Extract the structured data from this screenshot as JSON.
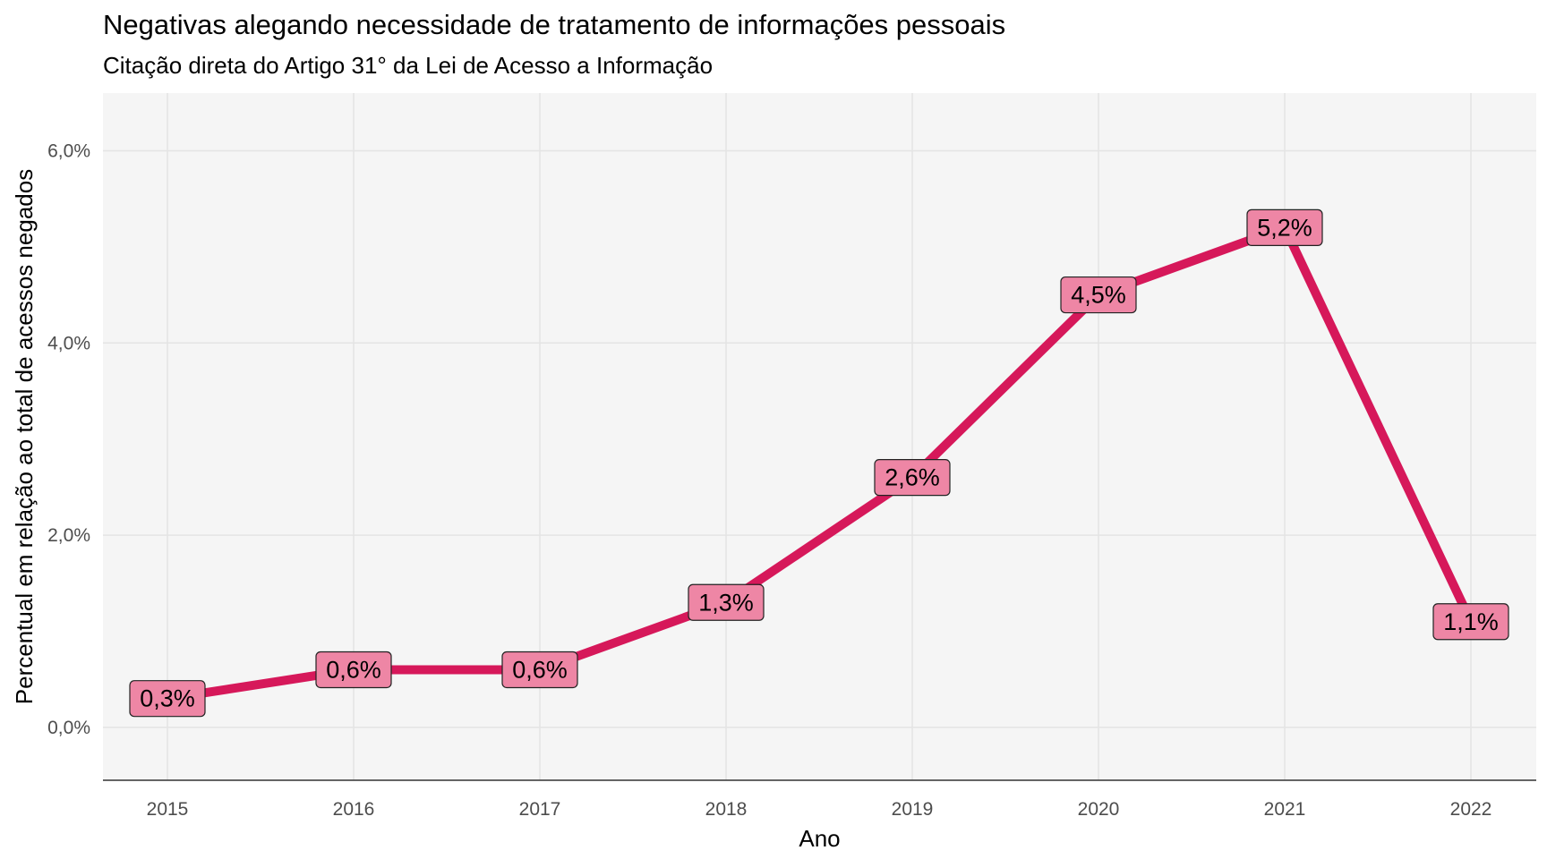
{
  "title": "Negativas alegando necessidade de tratamento de informações pessoais",
  "subtitle": "Citação direta do Artigo 31° da Lei de Acesso a Informação",
  "chart_data": {
    "type": "line",
    "title": "Negativas alegando necessidade de tratamento de informações pessoais",
    "subtitle": "Citação direta do Artigo 31° da Lei de Acesso a Informação",
    "xlabel": "Ano",
    "ylabel": "Percentual em relação ao total de acessos negados",
    "categories": [
      "2015",
      "2016",
      "2017",
      "2018",
      "2019",
      "2020",
      "2021",
      "2022"
    ],
    "values": [
      0.3,
      0.6,
      0.6,
      1.3,
      2.6,
      4.5,
      5.2,
      1.1
    ],
    "data_labels": [
      "0,3%",
      "0,6%",
      "0,6%",
      "1,3%",
      "2,6%",
      "4,5%",
      "5,2%",
      "1,1%"
    ],
    "yticks": [
      0,
      2,
      4,
      6
    ],
    "ytick_labels": [
      "0,0%",
      "2,0%",
      "4,0%",
      "6,0%"
    ],
    "ylim": [
      -0.55,
      6.6
    ],
    "grid": true,
    "legend": "none",
    "line_color": "#d6185a",
    "label_fill": "#ee86a5",
    "panel_background": "#f5f5f5"
  }
}
